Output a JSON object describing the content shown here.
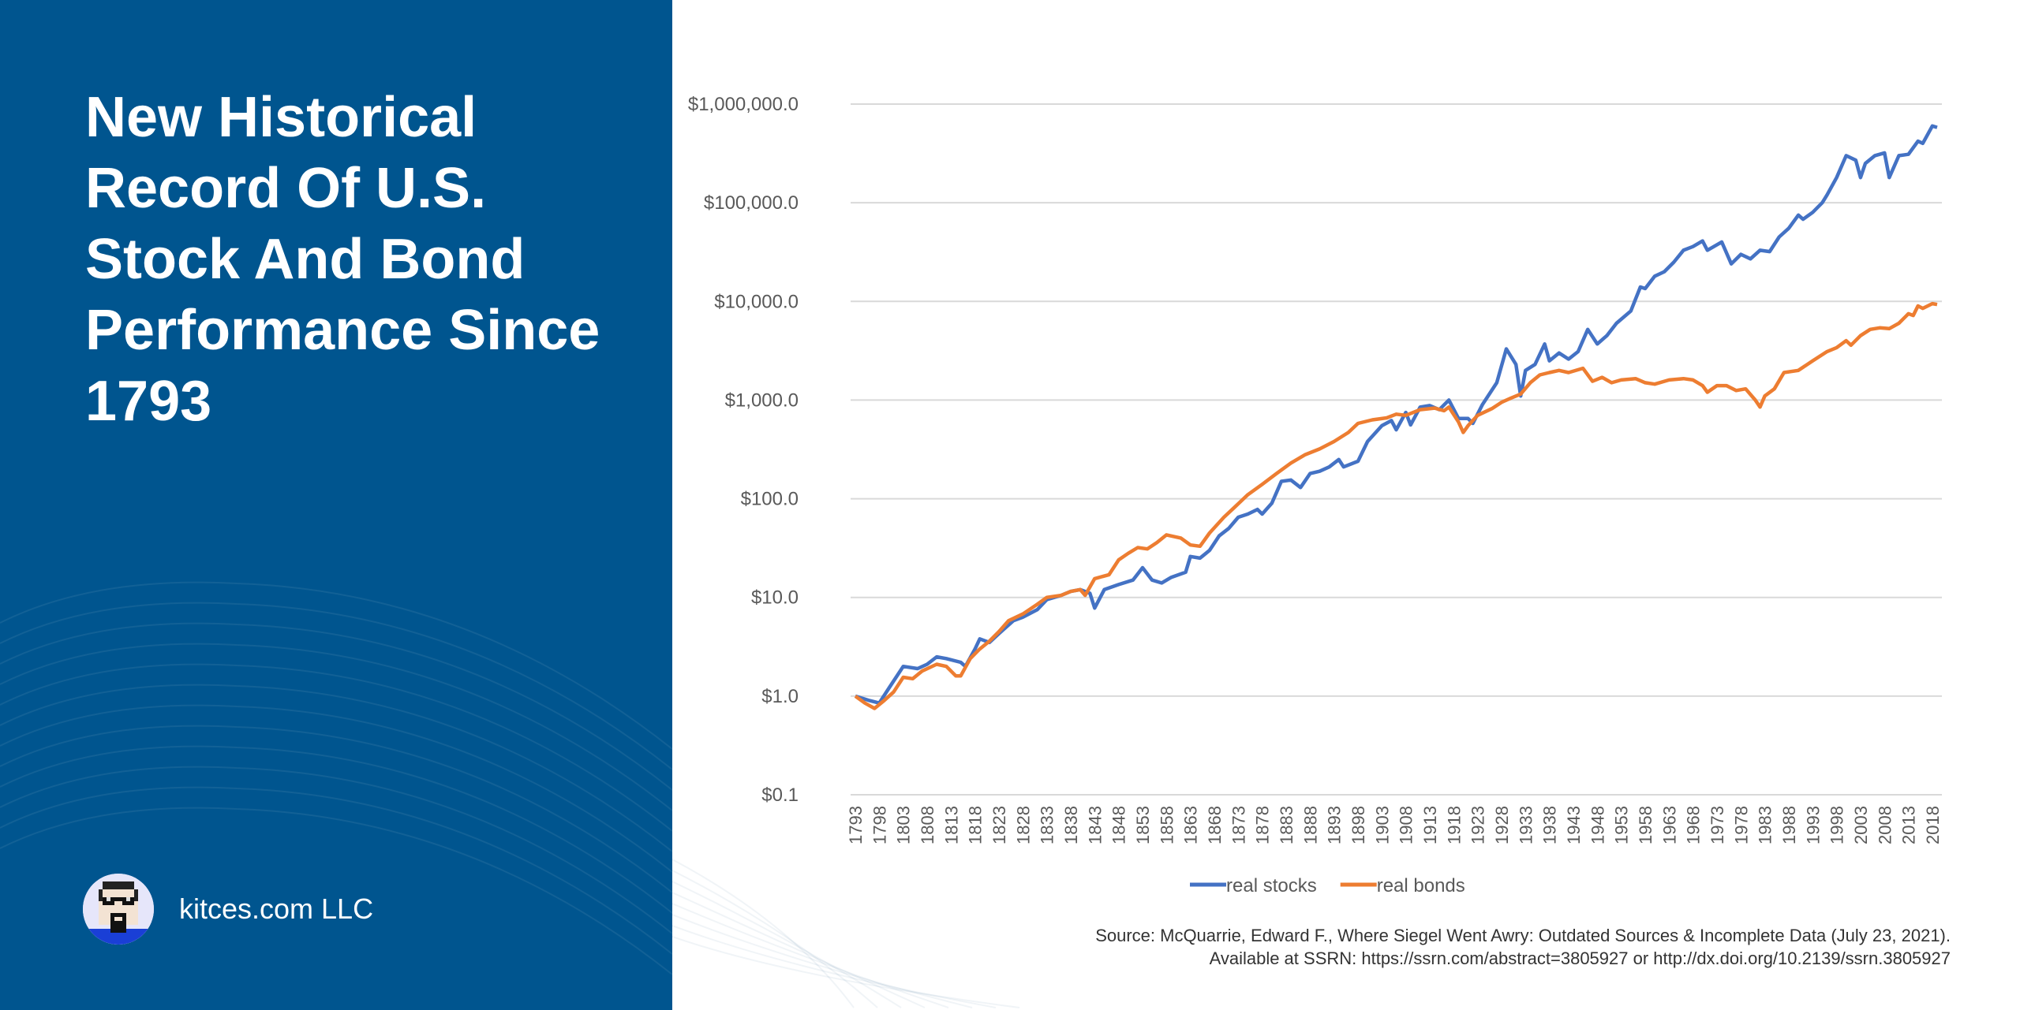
{
  "sidebar": {
    "title": "New Historical Record Of U.S. Stock And Bond Performance Since 1793",
    "brand": "kitces.com LLC",
    "background_color": "#00558f"
  },
  "source": {
    "line1": "Source: McQuarrie, Edward F., Where Siegel Went Awry: Outdated Sources & Incomplete Data (July 23, 2021).",
    "line2": "Available at SSRN: https://ssrn.com/abstract=3805927 or http://dx.doi.org/10.2139/ssrn.3805927"
  },
  "chart_data": {
    "type": "line",
    "title": "",
    "xlabel": "",
    "ylabel": "",
    "yscale": "log",
    "ylim": [
      0.1,
      1000000
    ],
    "xlim": [
      1793,
      2019
    ],
    "grid": true,
    "legend_position": "bottom",
    "y_tick_labels": [
      "$0.1",
      "$1.0",
      "$10.0",
      "$100.0",
      "$1,000.0",
      "$10,000.0",
      "$100,000.0",
      "$1,000,000.0"
    ],
    "y_tick_values": [
      0.1,
      1,
      10,
      100,
      1000,
      10000,
      100000,
      1000000
    ],
    "x_tick_labels": [
      "1793",
      "1798",
      "1803",
      "1808",
      "1813",
      "1818",
      "1823",
      "1828",
      "1833",
      "1838",
      "1843",
      "1848",
      "1853",
      "1858",
      "1863",
      "1868",
      "1873",
      "1878",
      "1883",
      "1888",
      "1893",
      "1898",
      "1903",
      "1908",
      "1913",
      "1918",
      "1923",
      "1928",
      "1933",
      "1938",
      "1943",
      "1948",
      "1953",
      "1958",
      "1963",
      "1968",
      "1973",
      "1978",
      "1983",
      "1988",
      "1993",
      "1998",
      "2003",
      "2008",
      "2013",
      "2018"
    ],
    "series": [
      {
        "name": "real stocks",
        "color": "#4472c4",
        "points": [
          [
            1793,
            1.0
          ],
          [
            1796,
            0.9
          ],
          [
            1798,
            0.85
          ],
          [
            1800,
            1.2
          ],
          [
            1803,
            2.0
          ],
          [
            1806,
            1.9
          ],
          [
            1808,
            2.1
          ],
          [
            1810,
            2.5
          ],
          [
            1812,
            2.4
          ],
          [
            1815,
            2.2
          ],
          [
            1816,
            2.0
          ],
          [
            1818,
            3.0
          ],
          [
            1819,
            3.8
          ],
          [
            1821,
            3.5
          ],
          [
            1823,
            4.3
          ],
          [
            1826,
            5.8
          ],
          [
            1828,
            6.3
          ],
          [
            1831,
            7.5
          ],
          [
            1833,
            9.5
          ],
          [
            1836,
            10.5
          ],
          [
            1838,
            11.5
          ],
          [
            1840,
            12
          ],
          [
            1842,
            11
          ],
          [
            1843,
            7.8
          ],
          [
            1845,
            12
          ],
          [
            1848,
            13.5
          ],
          [
            1851,
            15
          ],
          [
            1853,
            20
          ],
          [
            1855,
            15
          ],
          [
            1857,
            14
          ],
          [
            1859,
            16
          ],
          [
            1862,
            18
          ],
          [
            1863,
            26
          ],
          [
            1865,
            25
          ],
          [
            1867,
            30
          ],
          [
            1869,
            42
          ],
          [
            1871,
            50
          ],
          [
            1873,
            65
          ],
          [
            1875,
            70
          ],
          [
            1877,
            78
          ],
          [
            1878,
            70
          ],
          [
            1880,
            90
          ],
          [
            1882,
            150
          ],
          [
            1884,
            155
          ],
          [
            1886,
            130
          ],
          [
            1888,
            180
          ],
          [
            1890,
            190
          ],
          [
            1892,
            210
          ],
          [
            1894,
            250
          ],
          [
            1895,
            210
          ],
          [
            1898,
            240
          ],
          [
            1900,
            380
          ],
          [
            1903,
            550
          ],
          [
            1905,
            620
          ],
          [
            1906,
            500
          ],
          [
            1908,
            750
          ],
          [
            1909,
            560
          ],
          [
            1911,
            850
          ],
          [
            1913,
            880
          ],
          [
            1915,
            800
          ],
          [
            1917,
            1000
          ],
          [
            1919,
            650
          ],
          [
            1921,
            650
          ],
          [
            1922,
            580
          ],
          [
            1924,
            900
          ],
          [
            1927,
            1500
          ],
          [
            1929,
            3300
          ],
          [
            1931,
            2300
          ],
          [
            1932,
            1100
          ],
          [
            1933,
            2000
          ],
          [
            1935,
            2300
          ],
          [
            1937,
            3700
          ],
          [
            1938,
            2500
          ],
          [
            1940,
            3000
          ],
          [
            1942,
            2600
          ],
          [
            1944,
            3100
          ],
          [
            1946,
            5200
          ],
          [
            1948,
            3700
          ],
          [
            1950,
            4500
          ],
          [
            1952,
            6000
          ],
          [
            1955,
            8000
          ],
          [
            1957,
            14000
          ],
          [
            1958,
            13500
          ],
          [
            1960,
            18000
          ],
          [
            1962,
            20000
          ],
          [
            1964,
            25000
          ],
          [
            1966,
            33000
          ],
          [
            1968,
            36000
          ],
          [
            1970,
            41000
          ],
          [
            1971,
            33000
          ],
          [
            1974,
            40000
          ],
          [
            1976,
            24000
          ],
          [
            1978,
            30000
          ],
          [
            1980,
            27000
          ],
          [
            1982,
            33000
          ],
          [
            1984,
            32000
          ],
          [
            1986,
            45000
          ],
          [
            1988,
            55000
          ],
          [
            1990,
            75000
          ],
          [
            1991,
            68000
          ],
          [
            1993,
            80000
          ],
          [
            1995,
            100000
          ],
          [
            1996,
            120000
          ],
          [
            1998,
            180000
          ],
          [
            2000,
            300000
          ],
          [
            2002,
            270000
          ],
          [
            2003,
            180000
          ],
          [
            2004,
            250000
          ],
          [
            2006,
            300000
          ],
          [
            2008,
            320000
          ],
          [
            2009,
            180000
          ],
          [
            2011,
            300000
          ],
          [
            2013,
            310000
          ],
          [
            2015,
            420000
          ],
          [
            2016,
            400000
          ],
          [
            2018,
            600000
          ],
          [
            2019,
            580000
          ]
        ]
      },
      {
        "name": "real bonds",
        "color": "#ed7d31",
        "points": [
          [
            1793,
            1.0
          ],
          [
            1795,
            0.85
          ],
          [
            1797,
            0.75
          ],
          [
            1799,
            0.9
          ],
          [
            1801,
            1.1
          ],
          [
            1803,
            1.55
          ],
          [
            1805,
            1.5
          ],
          [
            1807,
            1.8
          ],
          [
            1810,
            2.1
          ],
          [
            1812,
            2.0
          ],
          [
            1814,
            1.6
          ],
          [
            1815,
            1.6
          ],
          [
            1817,
            2.4
          ],
          [
            1819,
            3.0
          ],
          [
            1821,
            3.6
          ],
          [
            1823,
            4.5
          ],
          [
            1825,
            5.8
          ],
          [
            1828,
            6.8
          ],
          [
            1831,
            8.5
          ],
          [
            1833,
            10
          ],
          [
            1836,
            10.5
          ],
          [
            1838,
            11.5
          ],
          [
            1840,
            12
          ],
          [
            1841,
            10.5
          ],
          [
            1843,
            15.5
          ],
          [
            1846,
            17
          ],
          [
            1848,
            24
          ],
          [
            1850,
            28
          ],
          [
            1852,
            32
          ],
          [
            1854,
            31
          ],
          [
            1856,
            36
          ],
          [
            1858,
            43
          ],
          [
            1861,
            40
          ],
          [
            1863,
            34
          ],
          [
            1865,
            33
          ],
          [
            1867,
            45
          ],
          [
            1870,
            65
          ],
          [
            1872,
            80
          ],
          [
            1875,
            110
          ],
          [
            1878,
            140
          ],
          [
            1881,
            180
          ],
          [
            1884,
            230
          ],
          [
            1887,
            280
          ],
          [
            1890,
            320
          ],
          [
            1893,
            380
          ],
          [
            1896,
            470
          ],
          [
            1898,
            580
          ],
          [
            1901,
            630
          ],
          [
            1904,
            660
          ],
          [
            1906,
            720
          ],
          [
            1908,
            700
          ],
          [
            1911,
            800
          ],
          [
            1914,
            830
          ],
          [
            1916,
            780
          ],
          [
            1917,
            850
          ],
          [
            1919,
            600
          ],
          [
            1920,
            470
          ],
          [
            1921,
            550
          ],
          [
            1923,
            700
          ],
          [
            1926,
            820
          ],
          [
            1928,
            950
          ],
          [
            1930,
            1050
          ],
          [
            1932,
            1150
          ],
          [
            1934,
            1500
          ],
          [
            1936,
            1800
          ],
          [
            1938,
            1900
          ],
          [
            1940,
            2000
          ],
          [
            1942,
            1900
          ],
          [
            1945,
            2100
          ],
          [
            1947,
            1550
          ],
          [
            1949,
            1700
          ],
          [
            1951,
            1500
          ],
          [
            1953,
            1600
          ],
          [
            1956,
            1650
          ],
          [
            1958,
            1500
          ],
          [
            1960,
            1450
          ],
          [
            1963,
            1600
          ],
          [
            1966,
            1650
          ],
          [
            1968,
            1600
          ],
          [
            1970,
            1400
          ],
          [
            1971,
            1200
          ],
          [
            1973,
            1400
          ],
          [
            1975,
            1400
          ],
          [
            1977,
            1250
          ],
          [
            1979,
            1300
          ],
          [
            1981,
            1000
          ],
          [
            1982,
            850
          ],
          [
            1983,
            1100
          ],
          [
            1985,
            1300
          ],
          [
            1987,
            1900
          ],
          [
            1990,
            2000
          ],
          [
            1993,
            2500
          ],
          [
            1996,
            3100
          ],
          [
            1998,
            3400
          ],
          [
            2000,
            4000
          ],
          [
            2001,
            3600
          ],
          [
            2003,
            4500
          ],
          [
            2005,
            5200
          ],
          [
            2007,
            5400
          ],
          [
            2009,
            5300
          ],
          [
            2011,
            6000
          ],
          [
            2013,
            7500
          ],
          [
            2014,
            7200
          ],
          [
            2015,
            9000
          ],
          [
            2016,
            8500
          ],
          [
            2018,
            9500
          ],
          [
            2019,
            9300
          ]
        ]
      }
    ]
  }
}
